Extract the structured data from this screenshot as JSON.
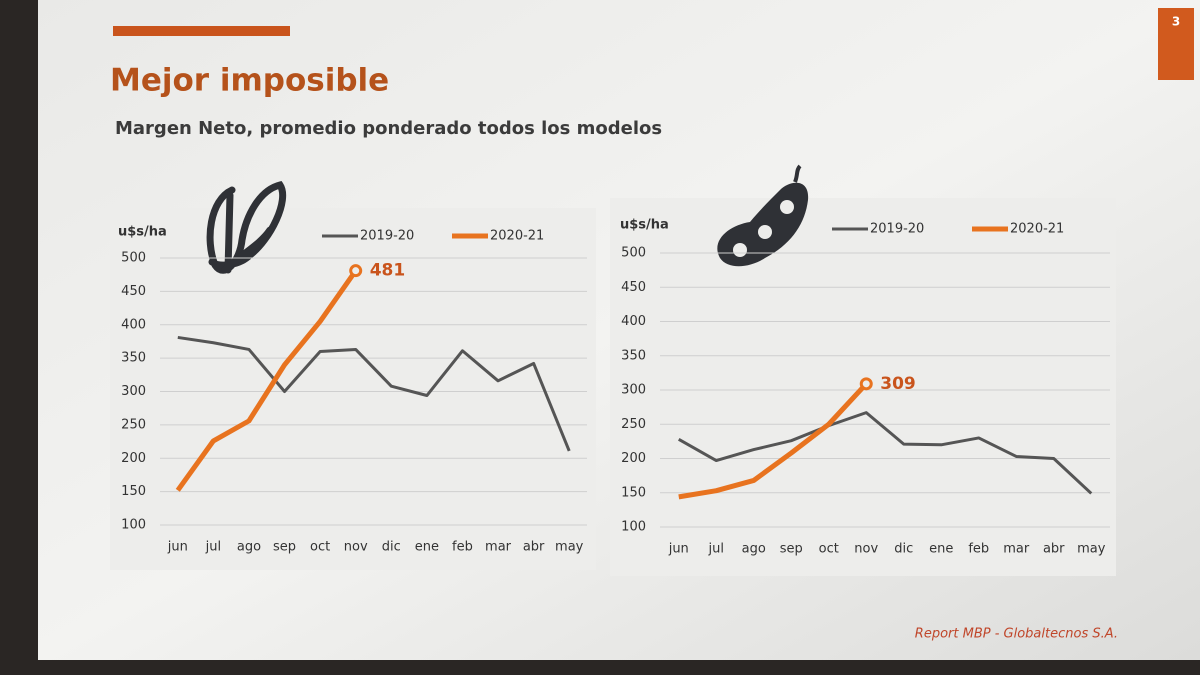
{
  "slide": {
    "title": "Mejor imposible",
    "subtitle": "Margen Neto, promedio ponderado todos los modelos",
    "footer": "Report MBP - Globaltecnos S.A.",
    "page_number": "3"
  },
  "chart_data": [
    {
      "type": "line",
      "y_label": "u$s/ha",
      "categories": [
        "jun",
        "jul",
        "ago",
        "sep",
        "oct",
        "nov",
        "dic",
        "ene",
        "feb",
        "mar",
        "abr",
        "may"
      ],
      "series": [
        {
          "name": "2019-20",
          "color": "#555555",
          "values": [
            381,
            373,
            363,
            300,
            360,
            363,
            308,
            294,
            361,
            316,
            342,
            211
          ]
        },
        {
          "name": "2020-21",
          "color": "#e8731f",
          "values": [
            152,
            226,
            256,
            340,
            405,
            481,
            null,
            null,
            null,
            null,
            null,
            null
          ]
        }
      ],
      "ylim": [
        100,
        500
      ],
      "yticks": [
        100,
        150,
        200,
        250,
        300,
        350,
        400,
        450,
        500
      ],
      "grid": true
    },
    {
      "type": "line",
      "y_label": "u$s/ha",
      "categories": [
        "jun",
        "jul",
        "ago",
        "sep",
        "oct",
        "nov",
        "dic",
        "ene",
        "feb",
        "mar",
        "abr",
        "may"
      ],
      "series": [
        {
          "name": "2019-20",
          "color": "#555555",
          "values": [
            228,
            197,
            213,
            226,
            248,
            267,
            221,
            220,
            230,
            203,
            200,
            149
          ]
        },
        {
          "name": "2020-21",
          "color": "#e8731f",
          "values": [
            144,
            153,
            168,
            208,
            250,
            309,
            null,
            null,
            null,
            null,
            null,
            null
          ]
        }
      ],
      "ylim": [
        100,
        500
      ],
      "yticks": [
        100,
        150,
        200,
        250,
        300,
        350,
        400,
        450,
        500
      ],
      "grid": true
    }
  ]
}
